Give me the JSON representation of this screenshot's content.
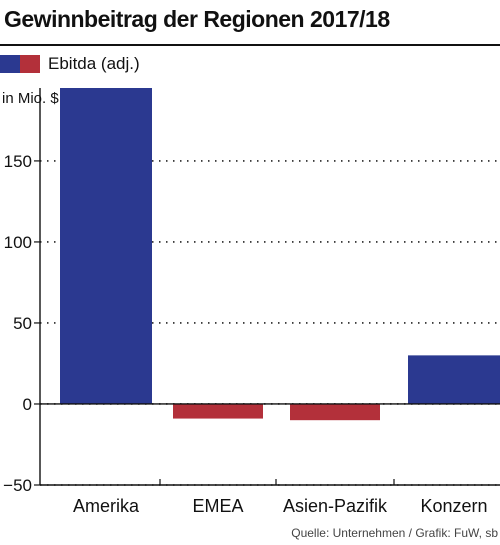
{
  "title": "Gewinnbeitrag der Regionen 2017/18",
  "legend": {
    "label": "Ebitda (adj.)",
    "swatch_colors": [
      "#2b3990",
      "#b3303a"
    ]
  },
  "unit_label": "in Mio. $",
  "source": "Quelle: Unternehmen / Grafik: FuW, sb",
  "chart_data": {
    "type": "bar",
    "categories": [
      "Amerika",
      "EMEA",
      "Asien-Pazifik",
      "Konzern"
    ],
    "values": [
      195,
      -9,
      -10,
      30
    ],
    "ylim": [
      -50,
      195
    ],
    "yticks": [
      150,
      100,
      50,
      0,
      -50
    ],
    "ytick_labels": [
      "150",
      "100",
      "50",
      "0",
      "−50"
    ],
    "grid": true,
    "colors": {
      "positive": "#2b3990",
      "negative": "#b3303a"
    }
  }
}
